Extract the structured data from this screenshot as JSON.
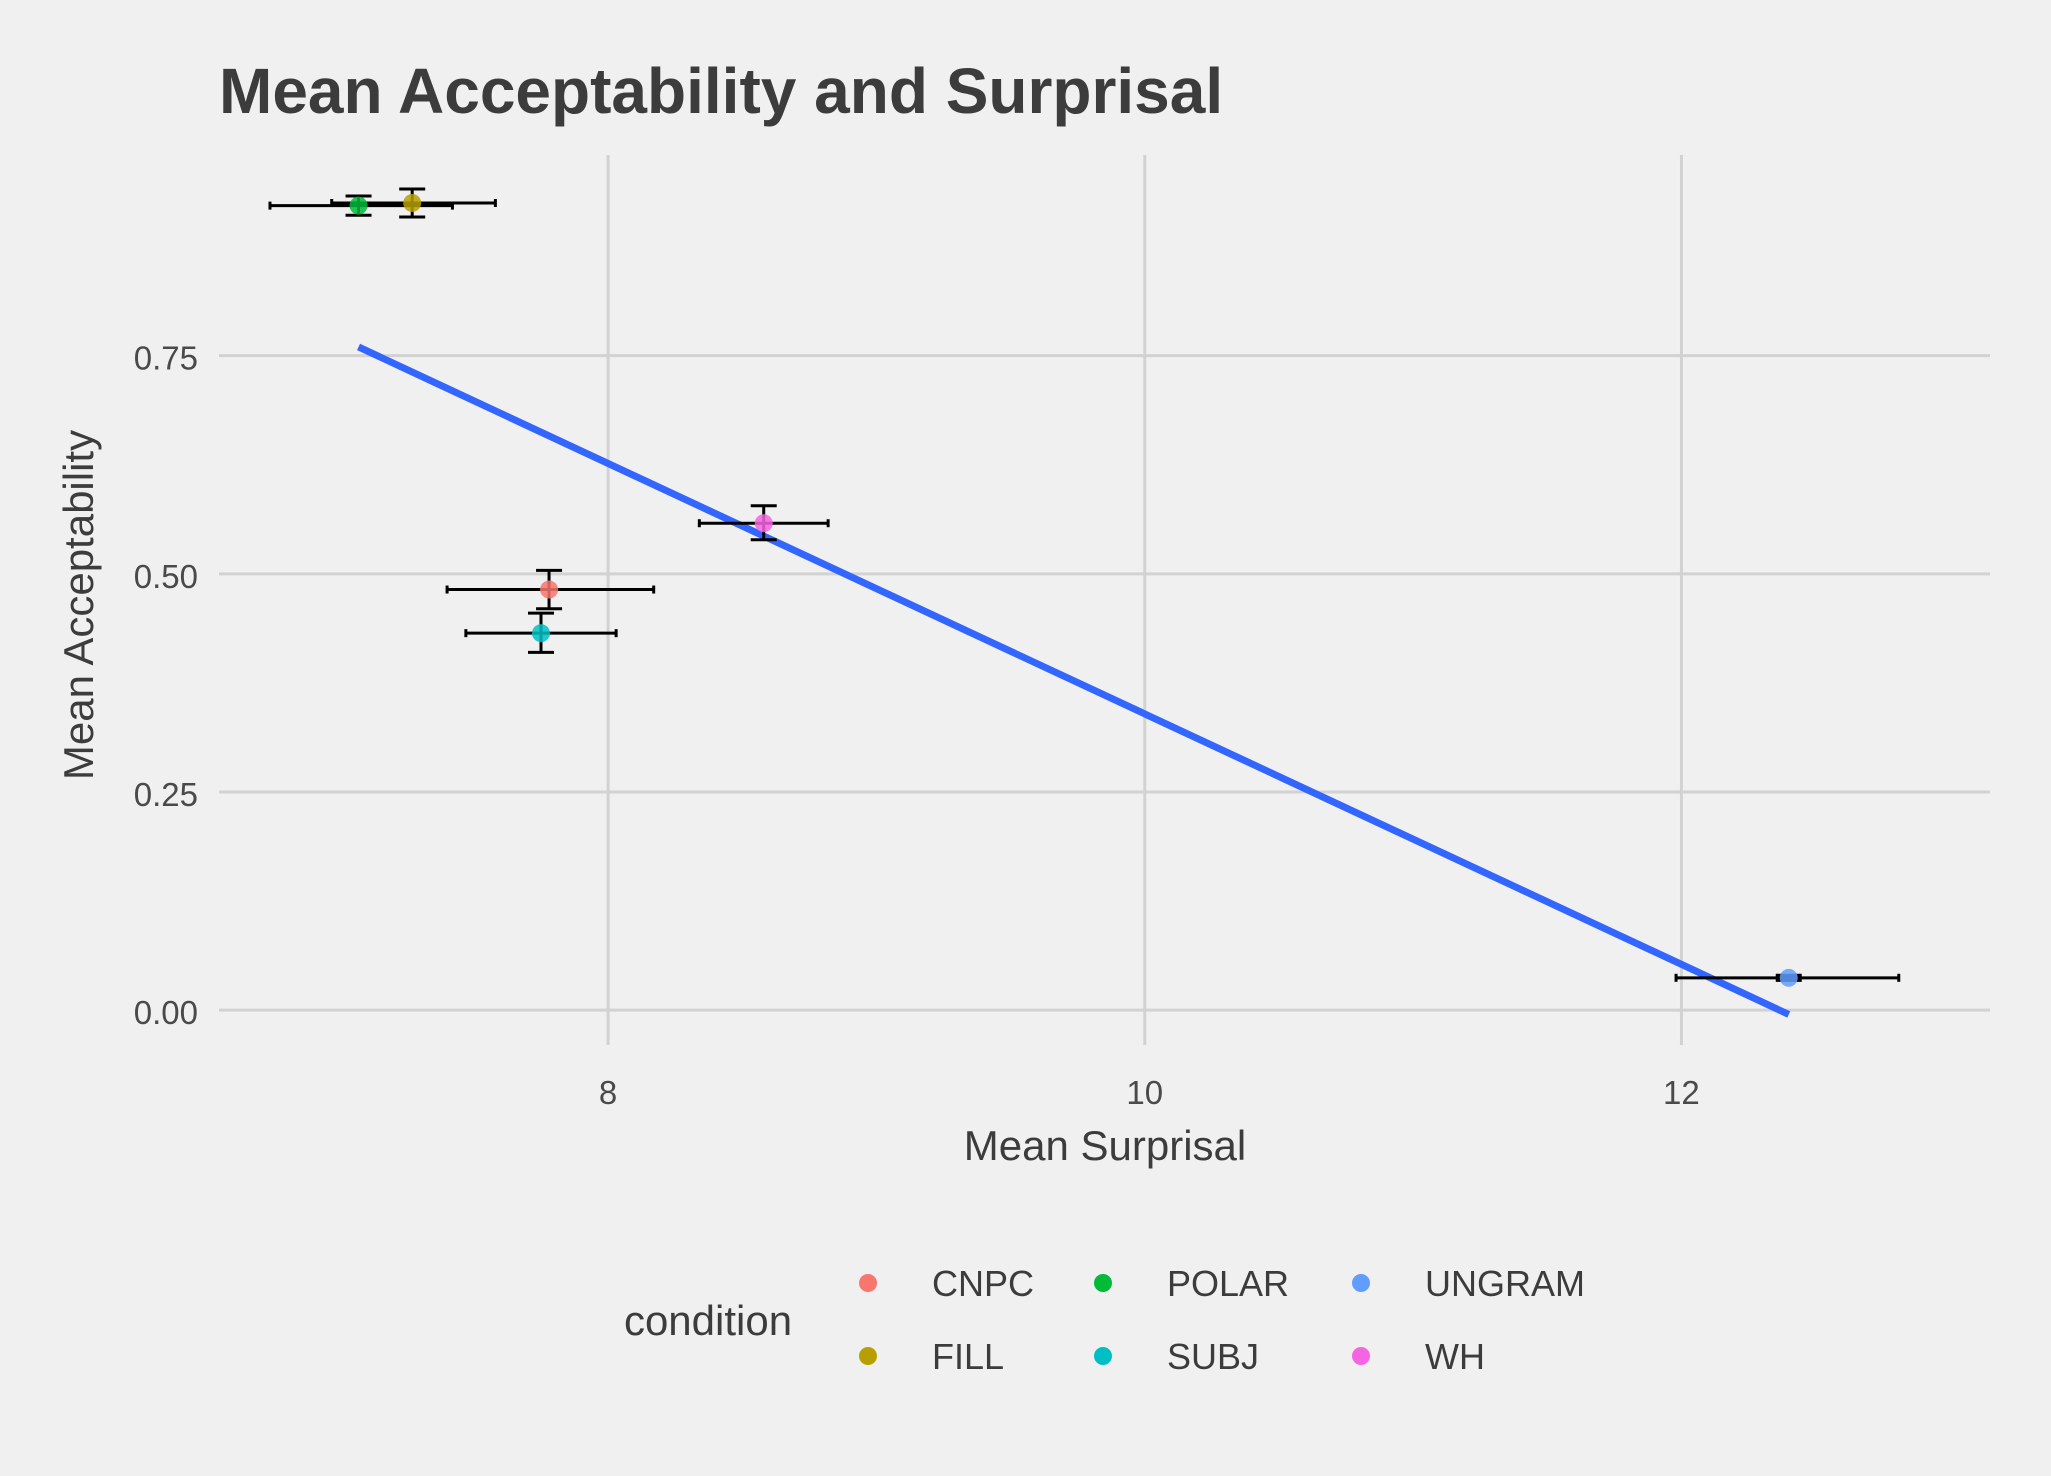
{
  "chart_data": {
    "type": "scatter",
    "title": "Mean Acceptability and Surprisal",
    "xlabel": "Mean Surprisal",
    "ylabel": "Mean Acceptability",
    "xlim": [
      6.55,
      13.15
    ],
    "ylim": [
      -0.04,
      0.98
    ],
    "x_ticks": [
      8,
      10,
      12
    ],
    "x_tick_labels": [
      "8",
      "10",
      "12"
    ],
    "y_ticks": [
      0,
      0.25,
      0.5,
      0.75
    ],
    "y_tick_labels": [
      "0.00",
      "0.25",
      "0.50",
      "0.75"
    ],
    "grid": true,
    "legend": {
      "title": "condition",
      "placement": "bottom"
    },
    "series": [
      {
        "name": "CNPC",
        "color": "#f8766d",
        "x": 7.78,
        "y": 0.482,
        "x_err": [
          7.4,
          8.17
        ],
        "y_err": [
          0.46,
          0.504
        ]
      },
      {
        "name": "FILL",
        "color": "#b79f00",
        "x": 7.27,
        "y": 0.925,
        "x_err": [
          6.97,
          7.58
        ],
        "y_err": [
          0.909,
          0.941
        ]
      },
      {
        "name": "POLAR",
        "color": "#00ba38",
        "x": 7.07,
        "y": 0.922,
        "x_err": [
          6.74,
          7.42
        ],
        "y_err": [
          0.911,
          0.933
        ]
      },
      {
        "name": "SUBJ",
        "color": "#00bfc4",
        "x": 7.75,
        "y": 0.432,
        "x_err": [
          7.47,
          8.03
        ],
        "y_err": [
          0.41,
          0.455
        ]
      },
      {
        "name": "UNGRAM",
        "color": "#619cff",
        "x": 12.4,
        "y": 0.037,
        "x_err": [
          11.98,
          12.81
        ],
        "y_err": [
          0.034,
          0.04
        ]
      },
      {
        "name": "WH",
        "color": "#f564e3",
        "x": 8.58,
        "y": 0.558,
        "x_err": [
          8.34,
          8.82
        ],
        "y_err": [
          0.539,
          0.578
        ]
      }
    ],
    "trend_line": {
      "color": "#3366ff",
      "x": [
        7.07,
        12.4
      ],
      "y": [
        0.76,
        -0.005
      ]
    }
  }
}
